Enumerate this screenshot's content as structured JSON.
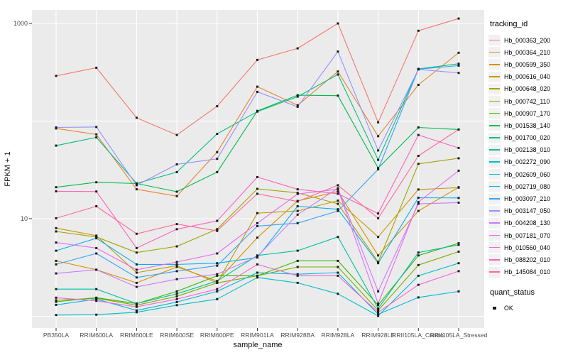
{
  "axes": {
    "x_title": "sample_name",
    "y_title": "FPKM + 1",
    "y_tick_labels": [
      "1000",
      "10"
    ]
  },
  "legend": {
    "tracking_title": "tracking_id",
    "quant_title": "quant_status",
    "quant_items": [
      {
        "label": "OK"
      }
    ]
  },
  "colors": {
    "panel_bg": "#EBEBEB",
    "gridline": "#FFFFFF",
    "point": "#1A1A1A",
    "tick_text": "#4D4D4D",
    "axis_title": "#111111"
  },
  "chart_data": {
    "type": "line",
    "title": "",
    "xlabel": "sample_name",
    "ylabel": "FPKM + 1",
    "y_scale": "log10",
    "ylim": [
      0.7,
      1450
    ],
    "y_gridlines": [
      1,
      10,
      100,
      1000
    ],
    "y_ticks": [
      {
        "label": "10",
        "value": 10
      },
      {
        "label": "1000",
        "value": 1000
      }
    ],
    "grid": true,
    "legend_position": "right",
    "point_shape": "square",
    "categories": [
      "PB350LA",
      "RRIM600LA",
      "RRIM600LE",
      "RRIM600SE",
      "RRIM600PE",
      "RRIM901LA",
      "RRIM928BA",
      "RRIM928LA",
      "RRIM928LE",
      "RRII105LA_Control",
      "RRII105LA_Stressed"
    ],
    "series": [
      {
        "name": "Hb_000363_200",
        "color": "#F8766D",
        "values": [
          290,
          352,
          108,
          72,
          142,
          423,
          556,
          1000,
          97,
          842,
          1122
        ]
      },
      {
        "name": "Hb_000364_210",
        "color": "#E8862D",
        "values": [
          84,
          73,
          20,
          17,
          48,
          225,
          145,
          322,
          70,
          235,
          501
        ]
      },
      {
        "name": "Hb_000599_350",
        "color": "#D89000",
        "values": [
          3.7,
          3.0,
          2.2,
          3.2,
          2.3,
          6.4,
          15.2,
          19,
          4.2,
          12,
          21
        ]
      },
      {
        "name": "Hb_000616_040",
        "color": "#C49A00",
        "values": [
          8.0,
          6.7,
          2.8,
          3.3,
          2.2,
          11.4,
          12,
          15.3,
          6.5,
          19.9,
          20.8
        ]
      },
      {
        "name": "Hb_000648_020",
        "color": "#A3A500",
        "values": [
          7.4,
          6.5,
          4.5,
          5.2,
          7.8,
          20.2,
          18.4,
          14.2,
          3.6,
          36.4,
          41.6
        ]
      },
      {
        "name": "Hb_000742_110",
        "color": "#7CAE00",
        "values": [
          1.46,
          1.53,
          1.3,
          1.6,
          2.2,
          2.6,
          3.2,
          3.2,
          1.15,
          3.35,
          4.6
        ]
      },
      {
        "name": "Hb_000907_170",
        "color": "#39B600",
        "values": [
          1.41,
          1.55,
          1.35,
          1.8,
          2.6,
          2.6,
          3.7,
          3.7,
          1.3,
          4.2,
          5.6
        ]
      },
      {
        "name": "Hb_001538_140",
        "color": "#00BB4E",
        "values": [
          21,
          23.6,
          22.9,
          18.9,
          30,
          127,
          184,
          182,
          33,
          86,
          82
        ]
      },
      {
        "name": "Hb_001700_020",
        "color": "#00BF7D",
        "values": [
          56,
          68,
          23,
          30,
          74,
          125,
          178,
          300,
          40,
          342,
          386
        ]
      },
      {
        "name": "Hb_002138_010",
        "color": "#00C1A2",
        "values": [
          1.9,
          1.9,
          1.35,
          1.7,
          2.3,
          4.2,
          4.7,
          6.5,
          1.2,
          4.5,
          5.4
        ]
      },
      {
        "name": "Hb_002272_090",
        "color": "#00BFC4",
        "values": [
          1.03,
          1.04,
          1.1,
          1.3,
          1.5,
          2.5,
          2.2,
          1.7,
          1.01,
          2.6,
          3.5
        ]
      },
      {
        "name": "Hb_002609_060",
        "color": "#00BAE0",
        "values": [
          1.31,
          1.5,
          1.15,
          1.4,
          1.8,
          2.8,
          2.7,
          2.8,
          1.05,
          1.56,
          1.8
        ]
      },
      {
        "name": "Hb_002719_080",
        "color": "#00B0F6",
        "values": [
          4.7,
          6.3,
          3.4,
          3.4,
          3.5,
          4.0,
          13.4,
          12.5,
          3.5,
          16.4,
          16.3
        ]
      },
      {
        "name": "Hb_003097_210",
        "color": "#35A2FF",
        "values": [
          3.4,
          4.4,
          2.5,
          2.9,
          3.3,
          8.4,
          9.0,
          12,
          32,
          340,
          370
        ]
      },
      {
        "name": "Hb_003147_050",
        "color": "#9590FF",
        "values": [
          86,
          87,
          22,
          36,
          41,
          199,
          140,
          515,
          50,
          338,
          311
        ]
      },
      {
        "name": "Hb_004208_130",
        "color": "#C77CFF",
        "values": [
          2.75,
          3.0,
          2.0,
          2.4,
          2.7,
          4.1,
          11,
          20.5,
          1.8,
          14.2,
          14.6
        ]
      },
      {
        "name": "Hb_007181_070",
        "color": "#E76BF3",
        "values": [
          5.7,
          5.0,
          3.0,
          3.6,
          4.4,
          9.0,
          17.9,
          20,
          1.35,
          14.8,
          31
        ]
      },
      {
        "name": "Hb_010560_040",
        "color": "#FA62DB",
        "values": [
          1.55,
          1.44,
          1.25,
          1.5,
          1.9,
          3.4,
          2.6,
          2.6,
          1.1,
          2.1,
          2.9
        ]
      },
      {
        "name": "Hb_088202_010",
        "color": "#FF62BC",
        "values": [
          19.1,
          19,
          5.0,
          7.8,
          9.5,
          26.7,
          20,
          18,
          11.3,
          72,
          53
        ]
      },
      {
        "name": "Hb_145084_010",
        "color": "#FF6A98",
        "values": [
          10.1,
          13.4,
          7.0,
          8.8,
          7.5,
          18,
          15,
          22,
          10.1,
          44,
          82
        ]
      }
    ],
    "quant_status": {
      "title": "quant_status",
      "items": [
        "OK"
      ]
    }
  }
}
